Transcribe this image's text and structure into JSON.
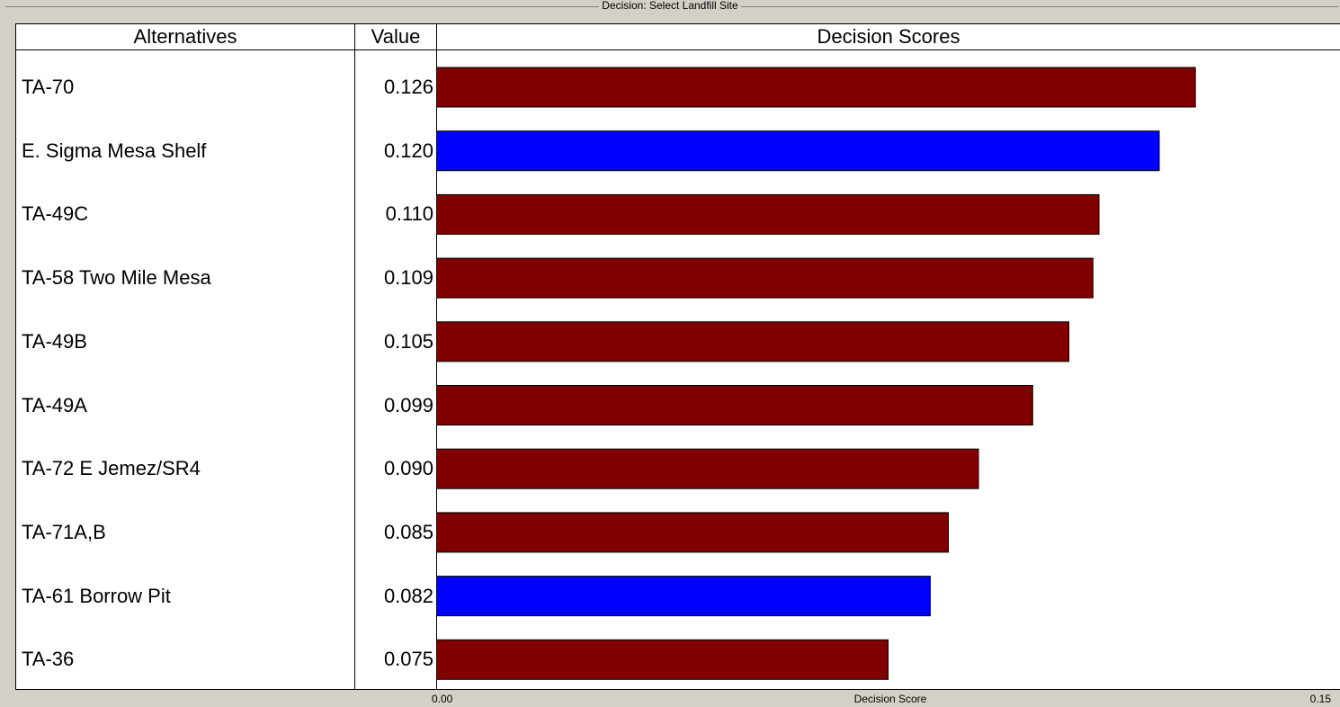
{
  "window": {
    "title": "Decision: Select Landfill Site"
  },
  "columns": {
    "alternatives": "Alternatives",
    "value": "Value",
    "scores": "Decision Scores"
  },
  "axis": {
    "min_label": "0.00",
    "title": "Decision Score",
    "max_label": "0.15"
  },
  "colors": {
    "default_bar": "#800000",
    "highlight_bar": "#0000ff"
  },
  "chart_data": {
    "type": "bar",
    "orientation": "horizontal",
    "title": "Decision Scores",
    "xlabel": "Decision Score",
    "xlim": [
      0,
      0.15
    ],
    "grid": false,
    "categories": [
      "TA-70",
      "E. Sigma Mesa Shelf",
      "TA-49C",
      "TA-58 Two Mile Mesa",
      "TA-49B",
      "TA-49A",
      "TA-72 E Jemez/SR4",
      "TA-71A,B",
      "TA-61 Borrow Pit",
      "TA-36"
    ],
    "value_labels": [
      "0.126",
      "0.120",
      "0.110",
      "0.109",
      "0.105",
      "0.099",
      "0.090",
      "0.085",
      "0.082",
      "0.075"
    ],
    "values": [
      0.126,
      0.12,
      0.11,
      0.109,
      0.105,
      0.099,
      0.09,
      0.085,
      0.082,
      0.075
    ],
    "bar_colors": [
      "#800000",
      "#0000ff",
      "#800000",
      "#800000",
      "#800000",
      "#800000",
      "#800000",
      "#800000",
      "#0000ff",
      "#800000"
    ]
  }
}
